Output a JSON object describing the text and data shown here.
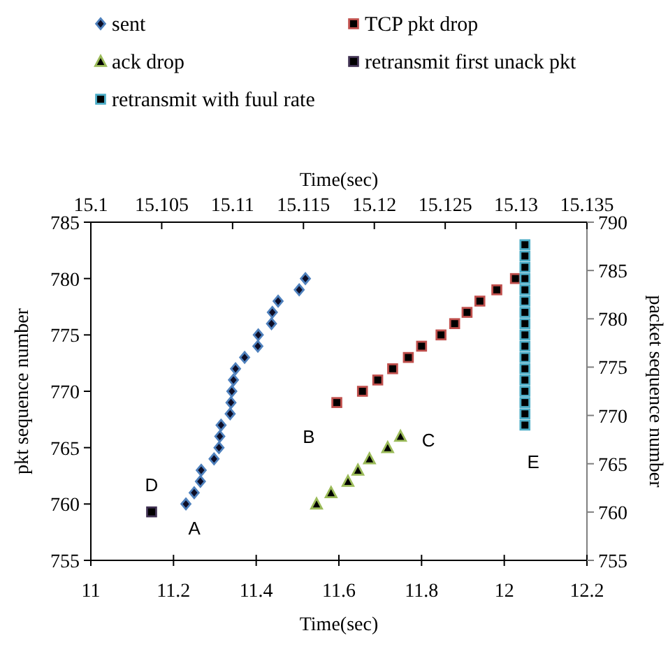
{
  "chart_data": {
    "type": "scatter",
    "xlabel": "Time(sec)",
    "x2label": "Time(sec)",
    "ylabel": "pkt sequence number",
    "y2label": "packet sequence number",
    "xlim": [
      11,
      12.2
    ],
    "xticks": [
      11,
      11.2,
      11.4,
      11.6,
      11.8,
      12,
      12.2
    ],
    "x2lim": [
      15.1,
      15.135
    ],
    "x2ticks": [
      15.1,
      15.105,
      15.11,
      15.115,
      15.12,
      15.125,
      15.13,
      15.135
    ],
    "ylim": [
      755,
      785
    ],
    "yticks": [
      755,
      760,
      765,
      770,
      775,
      780,
      785
    ],
    "y2lim": [
      755,
      790
    ],
    "y2ticks": [
      755,
      760,
      765,
      770,
      775,
      780,
      785,
      790
    ],
    "legend": "top",
    "series": [
      {
        "name": "sent",
        "marker": "diamond",
        "color": "#4f81bd",
        "x": [
          11.23,
          11.25,
          11.265,
          11.267,
          11.298,
          11.31,
          11.312,
          11.315,
          11.337,
          11.339,
          11.341,
          11.345,
          11.35,
          11.372,
          11.404,
          11.405,
          11.437,
          11.439,
          11.453,
          11.504,
          11.519
        ],
        "values": [
          760,
          761,
          762,
          763,
          764,
          765,
          766,
          767,
          768,
          769,
          770,
          771,
          772,
          773,
          774,
          775,
          776,
          777,
          778,
          779,
          780
        ]
      },
      {
        "name": "TCP pkt drop",
        "marker": "square",
        "color": "#c0504d",
        "x": [
          11.595,
          11.657,
          11.694,
          11.73,
          11.768,
          11.8,
          11.847,
          11.88,
          11.91,
          11.941,
          11.982,
          12.027
        ],
        "values": [
          769,
          770,
          771,
          772,
          773,
          774,
          775,
          776,
          777,
          778,
          779,
          780
        ]
      },
      {
        "name": "ack drop",
        "marker": "triangle",
        "color": "#9bbb59",
        "x": [
          11.546,
          11.581,
          11.622,
          11.646,
          11.674,
          11.718,
          11.749
        ],
        "values": [
          760,
          761,
          762,
          763,
          764,
          765,
          766
        ]
      },
      {
        "name": "retransmit first unack pkt",
        "marker": "square",
        "color": "#403152",
        "x": [
          11.147
        ],
        "values": [
          759.3
        ]
      },
      {
        "name": "retransmit with fuul rate",
        "marker": "square",
        "color": "#4bacc6",
        "x": [
          12.05,
          12.05,
          12.05,
          12.05,
          12.05,
          12.05,
          12.05,
          12.05,
          12.05,
          12.05,
          12.05,
          12.05,
          12.05,
          12.05,
          12.05,
          12.05,
          12.05
        ],
        "values": [
          767,
          768,
          769,
          770,
          771,
          772,
          773,
          774,
          775,
          776,
          777,
          778,
          779,
          780,
          781,
          782,
          783
        ]
      }
    ],
    "annotations": [
      {
        "text": "A",
        "x": 11.23,
        "y": 760
      },
      {
        "text": "B",
        "x": 11.595,
        "y": 769
      },
      {
        "text": "C",
        "x": 11.749,
        "y": 766
      },
      {
        "text": "D",
        "x": 11.147,
        "y": 759.3
      },
      {
        "text": "E",
        "x": 12.05,
        "y": 767
      }
    ]
  }
}
